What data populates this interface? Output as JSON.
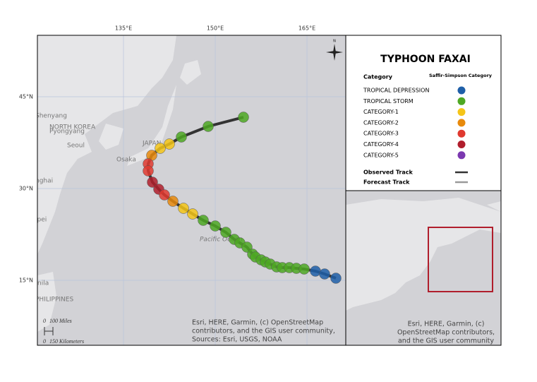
{
  "map": {
    "graticule": {
      "longitudes": [
        "135°E",
        "150°E",
        "165°E"
      ],
      "latitudes": [
        "45°N",
        "30°N",
        "15°N"
      ]
    },
    "places": [
      "Shenyang",
      "NORTH KOREA",
      "Pyongyang",
      "Seoul",
      "Osaka",
      "JAPAN",
      "nghai",
      "ipei",
      "Pacific Ocean",
      "nila",
      "PHILIPPINES"
    ],
    "scale_bar": [
      "0",
      "100 Miles",
      "0",
      "150 Kilometers"
    ],
    "attribution": [
      "Esri, HERE, Garmin, (c) OpenStreetMap",
      "contributors, and the GIS user community,",
      "Sources: Esri, USGS, NOAA"
    ]
  },
  "legend": {
    "title": "TYPHOON FAXAI",
    "column_left": "Category",
    "column_right": "Saffir-Simpson Category",
    "items": [
      {
        "label": "TROPICAL DEPRESSION",
        "color": "#1f5fa8"
      },
      {
        "label": "TROPICAL STORM",
        "color": "#4ea823"
      },
      {
        "label": "CATEGORY-1",
        "color": "#f5c518"
      },
      {
        "label": "CATEGORY-2",
        "color": "#e88a0c"
      },
      {
        "label": "CATEGORY-3",
        "color": "#e0392f"
      },
      {
        "label": "CATEGORY-4",
        "color": "#b01e2c"
      },
      {
        "label": "CATEGORY-5",
        "color": "#7b38b0"
      }
    ],
    "tracks": [
      {
        "label": "Observed Track",
        "color": "#333333"
      },
      {
        "label": "Forecast Track",
        "color": "#999999"
      }
    ]
  },
  "inset": {
    "attribution": [
      "Esri, HERE, Garmin, (c)",
      "OpenStreetMap contributors,",
      "and the GIS user community"
    ]
  }
}
